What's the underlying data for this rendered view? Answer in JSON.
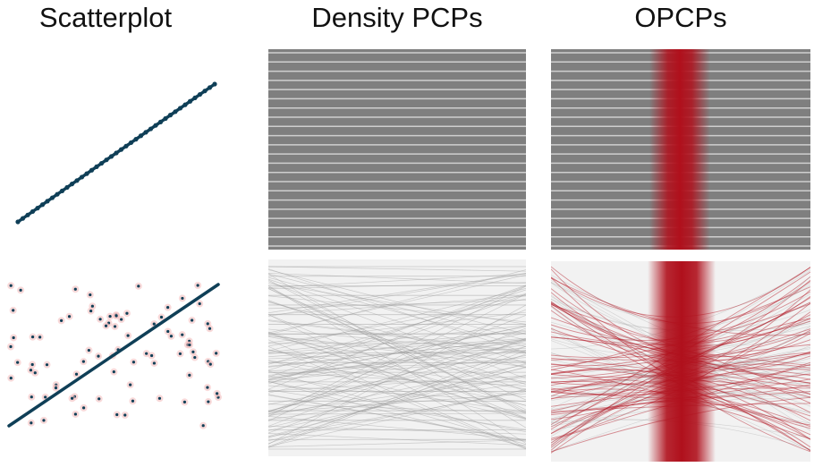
{
  "titles": {
    "scatterplot": "Scatterplot",
    "density": "Density PCPs",
    "opcps": "OPCPs"
  },
  "colors": {
    "scatter_point": "#0f3f57",
    "density_background": "#7f7f7f",
    "density_line": "#cfcfcf",
    "panel_background_light": "#f2f2f2",
    "noise_line": "#9a9a9a",
    "highlight": "#b0101c",
    "outlier_dot_halo": "#f3b9b9"
  },
  "rows": {
    "correlated": {
      "description_key": "perfect-positive-correlation",
      "parallel_lines": 22
    },
    "noisy": {
      "description_key": "correlated-with-noise",
      "outlier_points": 85,
      "noise_lines": 110
    }
  }
}
